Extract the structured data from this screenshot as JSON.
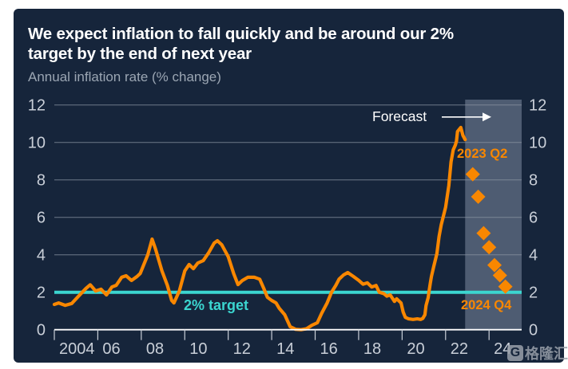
{
  "header": {
    "title_line1": "We expect inflation to fall quickly and be around our 2%",
    "title_line2": "target by the end of next year",
    "subtitle": "Annual inflation rate (% change)"
  },
  "annotations": {
    "forecast": "Forecast",
    "first_forecast_point": "2023 Q2",
    "last_forecast_point": "2024 Q4",
    "target": "2% target"
  },
  "watermark": {
    "logo_letter": "G",
    "text": "格隆汇"
  },
  "chart_data": {
    "type": "line",
    "title": "We expect inflation to fall quickly and be around our 2% target by the end of next year",
    "ylabel": "Annual inflation rate (% change)",
    "ylim": [
      0,
      12
    ],
    "yticks": [
      0,
      2,
      4,
      6,
      8,
      10,
      12
    ],
    "y_axis_sides": [
      "left",
      "right"
    ],
    "xlim": [
      2004,
      2025.5
    ],
    "xtick_years": [
      2004,
      2006,
      2008,
      2010,
      2012,
      2014,
      2016,
      2018,
      2020,
      2022,
      2024
    ],
    "xtick_labels": [
      "2004",
      "06",
      "08",
      "10",
      "12",
      "14",
      "16",
      "18",
      "20",
      "22",
      "24"
    ],
    "grid": "horizontal",
    "target_line_value": 2,
    "forecast_region": {
      "start_year": 2022.9,
      "end_year": 2025.5
    },
    "series": [
      {
        "name": "Annual inflation rate (historical)",
        "type": "line",
        "points": [
          [
            2004.0,
            1.35
          ],
          [
            2004.2,
            1.43
          ],
          [
            2004.5,
            1.3
          ],
          [
            2004.8,
            1.4
          ],
          [
            2005.1,
            1.77
          ],
          [
            2005.45,
            2.2
          ],
          [
            2005.65,
            2.4
          ],
          [
            2005.9,
            2.07
          ],
          [
            2006.15,
            2.16
          ],
          [
            2006.4,
            1.86
          ],
          [
            2006.65,
            2.28
          ],
          [
            2006.85,
            2.37
          ],
          [
            2007.1,
            2.8
          ],
          [
            2007.3,
            2.88
          ],
          [
            2007.55,
            2.63
          ],
          [
            2007.8,
            2.84
          ],
          [
            2007.95,
            3.0
          ],
          [
            2008.3,
            4.0
          ],
          [
            2008.5,
            4.84
          ],
          [
            2008.65,
            4.33
          ],
          [
            2008.95,
            3.14
          ],
          [
            2009.2,
            2.37
          ],
          [
            2009.4,
            1.56
          ],
          [
            2009.5,
            1.43
          ],
          [
            2009.75,
            2.07
          ],
          [
            2010.0,
            3.14
          ],
          [
            2010.2,
            3.48
          ],
          [
            2010.4,
            3.26
          ],
          [
            2010.6,
            3.56
          ],
          [
            2010.85,
            3.69
          ],
          [
            2011.1,
            4.11
          ],
          [
            2011.35,
            4.62
          ],
          [
            2011.5,
            4.75
          ],
          [
            2011.7,
            4.54
          ],
          [
            2012.0,
            3.9
          ],
          [
            2012.25,
            3.0
          ],
          [
            2012.45,
            2.41
          ],
          [
            2012.65,
            2.63
          ],
          [
            2012.9,
            2.8
          ],
          [
            2013.2,
            2.8
          ],
          [
            2013.45,
            2.7
          ],
          [
            2013.65,
            2.16
          ],
          [
            2013.8,
            1.73
          ],
          [
            2014.0,
            1.56
          ],
          [
            2014.2,
            1.43
          ],
          [
            2014.35,
            1.14
          ],
          [
            2014.6,
            0.8
          ],
          [
            2014.85,
            0.16
          ],
          [
            2015.1,
            0.02
          ],
          [
            2015.35,
            0.0
          ],
          [
            2015.6,
            0.05
          ],
          [
            2015.85,
            0.24
          ],
          [
            2016.1,
            0.37
          ],
          [
            2016.3,
            0.88
          ],
          [
            2016.55,
            1.43
          ],
          [
            2016.75,
            1.99
          ],
          [
            2016.95,
            2.37
          ],
          [
            2017.1,
            2.7
          ],
          [
            2017.3,
            2.92
          ],
          [
            2017.5,
            3.05
          ],
          [
            2017.75,
            2.85
          ],
          [
            2018.0,
            2.64
          ],
          [
            2018.2,
            2.43
          ],
          [
            2018.4,
            2.5
          ],
          [
            2018.6,
            2.28
          ],
          [
            2018.8,
            2.36
          ],
          [
            2018.95,
            2.0
          ],
          [
            2019.15,
            1.93
          ],
          [
            2019.3,
            1.79
          ],
          [
            2019.45,
            1.86
          ],
          [
            2019.65,
            1.51
          ],
          [
            2019.75,
            1.65
          ],
          [
            2019.95,
            1.43
          ],
          [
            2020.05,
            0.94
          ],
          [
            2020.15,
            0.66
          ],
          [
            2020.3,
            0.58
          ],
          [
            2020.5,
            0.55
          ],
          [
            2020.7,
            0.58
          ],
          [
            2020.85,
            0.55
          ],
          [
            2020.95,
            0.6
          ],
          [
            2021.05,
            0.8
          ],
          [
            2021.1,
            1.29
          ],
          [
            2021.2,
            1.72
          ],
          [
            2021.25,
            2.14
          ],
          [
            2021.3,
            2.5
          ],
          [
            2021.35,
            2.85
          ],
          [
            2021.45,
            3.35
          ],
          [
            2021.6,
            4.07
          ],
          [
            2021.7,
            4.97
          ],
          [
            2021.8,
            5.6
          ],
          [
            2022.0,
            6.54
          ],
          [
            2022.15,
            7.69
          ],
          [
            2022.25,
            8.96
          ],
          [
            2022.35,
            9.6
          ],
          [
            2022.45,
            9.86
          ],
          [
            2022.5,
            10.07
          ],
          [
            2022.55,
            10.58
          ],
          [
            2022.7,
            10.8
          ],
          [
            2022.8,
            10.37
          ],
          [
            2022.9,
            10.15
          ]
        ]
      },
      {
        "name": "Forecast (quarterly)",
        "type": "scatter-diamond",
        "points": [
          [
            2023.25,
            8.3
          ],
          [
            2023.5,
            7.1
          ],
          [
            2023.75,
            5.15
          ],
          [
            2024.0,
            4.4
          ],
          [
            2024.25,
            3.45
          ],
          [
            2024.5,
            2.9
          ],
          [
            2024.75,
            2.3
          ]
        ]
      }
    ],
    "colors": {
      "line": "#F98700",
      "diamond": "#F98700",
      "target_line": "#3BD6D0",
      "forecast_band": "#4E5C72",
      "gridline": "#8A95A3",
      "axis_line": "#FFFFFF",
      "axis_text": "#C9CFD8",
      "background": "#16253B"
    }
  }
}
